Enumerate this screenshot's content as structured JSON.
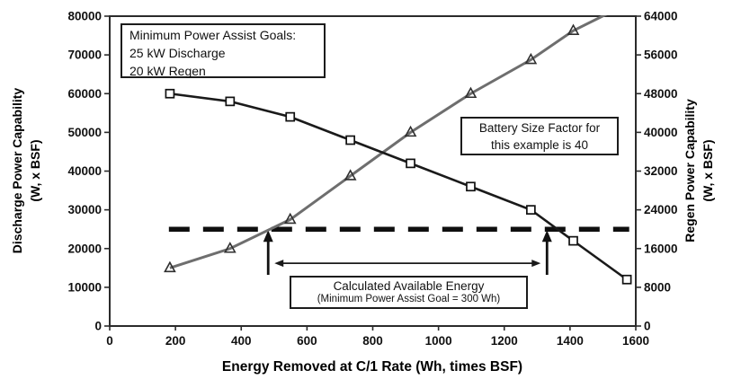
{
  "figure": {
    "xlabel": "Energy Removed at C/1 Rate (Wh, times BSF)",
    "ylabel_left_line1": "Discharge Power Capability",
    "ylabel_left_line2": "(W, x BSF)",
    "ylabel_right_line1": "Regen Power Capability",
    "ylabel_right_line2": "(W, x BSF)"
  },
  "annotations": {
    "goals_line1": "Minimum Power Assist Goals:",
    "goals_line2": "25 kW Discharge",
    "goals_line3": "20 kW Regen",
    "bsf_line1": "Battery Size Factor for",
    "bsf_line2": "this example is 40",
    "energy_line1": "Calculated Available Energy",
    "energy_line2": "(Minimum Power Assist Goal = 300 Wh)"
  },
  "chart_data": {
    "type": "line",
    "title": "",
    "xlabel": "Energy Removed at C/1 Rate (Wh, times BSF)",
    "ylabel_left": "Discharge Power Capability (W, x BSF)",
    "ylabel_right": "Regen Power Capability (W, x BSF)",
    "grid": false,
    "legend": "none",
    "x_range": [
      0,
      1600
    ],
    "y_left_range": [
      0,
      80000
    ],
    "y_right_range": [
      0,
      64000
    ],
    "x_ticks": [
      0,
      200,
      400,
      600,
      800,
      1000,
      1200,
      1400,
      1600
    ],
    "y_left_ticks": [
      0,
      10000,
      20000,
      30000,
      40000,
      50000,
      60000,
      70000,
      80000
    ],
    "y_right_ticks": [
      0,
      8000,
      16000,
      24000,
      32000,
      40000,
      48000,
      56000,
      64000
    ],
    "series": [
      {
        "name": "Discharge Power Capability",
        "axis": "left",
        "marker": "square",
        "color": "#1a1a1a",
        "x": [
          183,
          366,
          549,
          732,
          915,
          1098,
          1281,
          1410,
          1573
        ],
        "y": [
          60000,
          58000,
          54000,
          48000,
          42000,
          36000,
          30000,
          22000,
          12000
        ]
      },
      {
        "name": "Regen Power Capability",
        "axis": "right",
        "marker": "triangle",
        "color": "#6e6e6e",
        "x": [
          183,
          366,
          549,
          732,
          915,
          1098,
          1281,
          1410
        ],
        "y": [
          12000,
          16000,
          22000,
          31000,
          40000,
          48000,
          55000,
          61000
        ],
        "extension_point": {
          "x": 1573,
          "y": 66500,
          "note": "line continues off the top of the plot"
        }
      }
    ],
    "goal_line": {
      "axis": "left",
      "value": 25000,
      "x_from": 180,
      "x_to": 1580,
      "style": "thick-dashed",
      "meaning": "25 kW discharge goal (left axis) / 20 kW regen goal (right axis)"
    },
    "available_energy_markers": {
      "left_arrow_x": 482,
      "right_arrow_x": 1330,
      "span_arrow_y_left_value": 16200
    }
  }
}
